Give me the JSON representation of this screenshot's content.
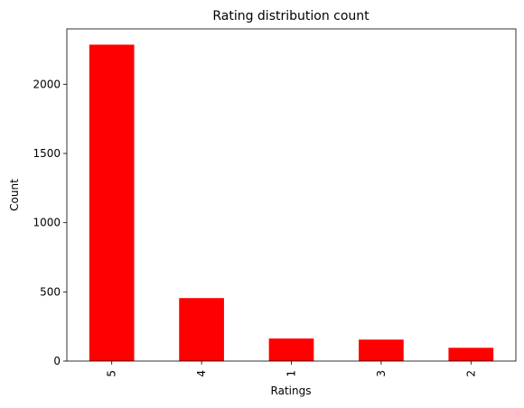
{
  "chart_data": {
    "type": "bar",
    "title": "Rating distribution count",
    "xlabel": "Ratings",
    "ylabel": "Count",
    "categories": [
      "5",
      "4",
      "1",
      "3",
      "2"
    ],
    "values": [
      2286,
      455,
      163,
      155,
      96
    ],
    "ylim": [
      0,
      2400
    ],
    "yticks": [
      0,
      500,
      1000,
      1500,
      2000
    ],
    "bar_color": "#ff0000",
    "grid": false,
    "legend": "none"
  }
}
